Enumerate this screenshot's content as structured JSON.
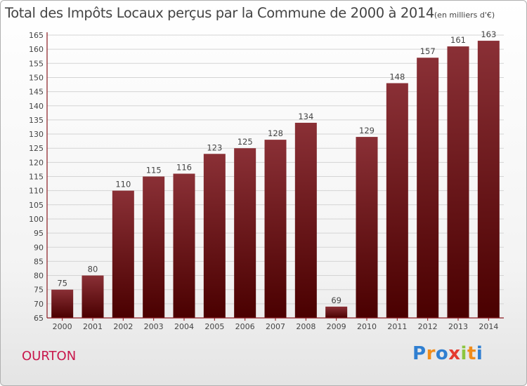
{
  "title": {
    "main": "Total des Impôts Locaux perçus par la Commune de 2000 à 2014",
    "unit": "(en milliers d'€)"
  },
  "commune": "OURTON",
  "brand": {
    "name": "Proxiti",
    "letters": [
      {
        "ch": "P",
        "color": "#2f7fd1"
      },
      {
        "ch": "r",
        "color": "#f08c1a"
      },
      {
        "ch": "o",
        "color": "#2f7fd1"
      },
      {
        "ch": "x",
        "color": "#e43a2f"
      },
      {
        "ch": "i",
        "color": "#8cc63f"
      },
      {
        "ch": "t",
        "color": "#f08c1a"
      },
      {
        "ch": "i",
        "color": "#2f7fd1"
      }
    ]
  },
  "colors": {
    "bar_top": "#8a3036",
    "bar_bottom": "#4a0000",
    "axis": "#8a1a20",
    "grid": "#d4d4d4",
    "text": "#444444"
  },
  "chart_data": {
    "type": "bar",
    "title": "Total des Impôts Locaux perçus par la Commune de 2000 à 2014",
    "xlabel": "",
    "ylabel": "",
    "categories": [
      "2000",
      "2001",
      "2002",
      "2003",
      "2004",
      "2005",
      "2006",
      "2007",
      "2008",
      "2009",
      "2010",
      "2011",
      "2012",
      "2013",
      "2014"
    ],
    "values": [
      75,
      80,
      110,
      115,
      116,
      123,
      125,
      128,
      134,
      69,
      129,
      148,
      157,
      161,
      163
    ],
    "ylim": [
      65,
      165
    ],
    "yticks": [
      65,
      70,
      75,
      80,
      85,
      90,
      95,
      100,
      105,
      110,
      115,
      120,
      125,
      130,
      135,
      140,
      145,
      150,
      155,
      160,
      165
    ],
    "grid": true
  }
}
